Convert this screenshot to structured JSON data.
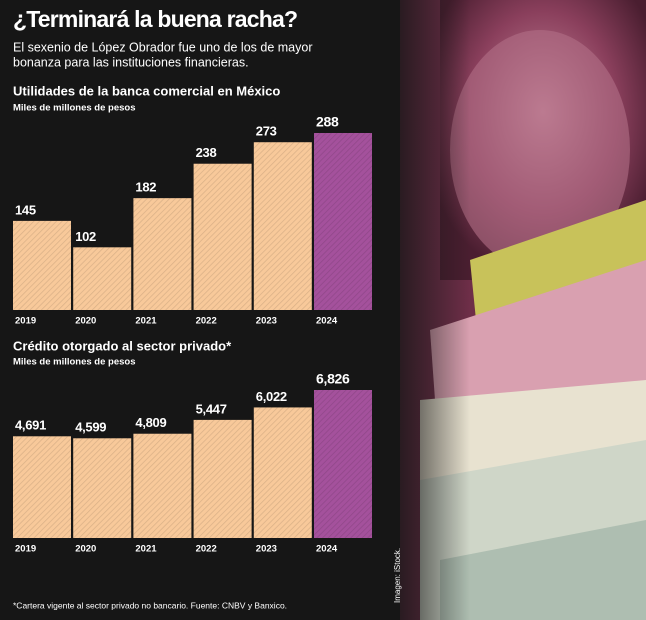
{
  "title": "¿Terminará la buena racha?",
  "subtitle": [
    "El sexenio de López Obrador fue uno de los de mayor",
    "bonanza para las instituciones financieras."
  ],
  "footnote": "*Cartera vigente al sector privado no bancario. Fuente: CNBV y Banxico.",
  "credit": "Imagen: iStock.",
  "chart_data": [
    {
      "type": "bar",
      "title": "Utilidades de la banca comercial en México",
      "subtitle": "Miles de millones de pesos",
      "categories": [
        "2019",
        "2020",
        "2021",
        "2022",
        "2023",
        "2024"
      ],
      "values": [
        145,
        102,
        182,
        238,
        273,
        288
      ],
      "colors": [
        "#f8c99a",
        "#f8c99a",
        "#f8c99a",
        "#f8c99a",
        "#f8c99a",
        "#a4519c"
      ]
    },
    {
      "type": "bar",
      "title": "Crédito otorgado al sector privado*",
      "subtitle": "Miles de millones de pesos",
      "categories": [
        "2019",
        "2020",
        "2021",
        "2022",
        "2023",
        "2024"
      ],
      "values": [
        4691,
        4599,
        4809,
        5447,
        6022,
        6826
      ],
      "value_labels": [
        "4,691",
        "4,599",
        "4,809",
        "5,447",
        "6,022",
        "6,826"
      ],
      "colors": [
        "#f8c99a",
        "#f8c99a",
        "#f8c99a",
        "#f8c99a",
        "#f8c99a",
        "#a4519c"
      ]
    }
  ]
}
